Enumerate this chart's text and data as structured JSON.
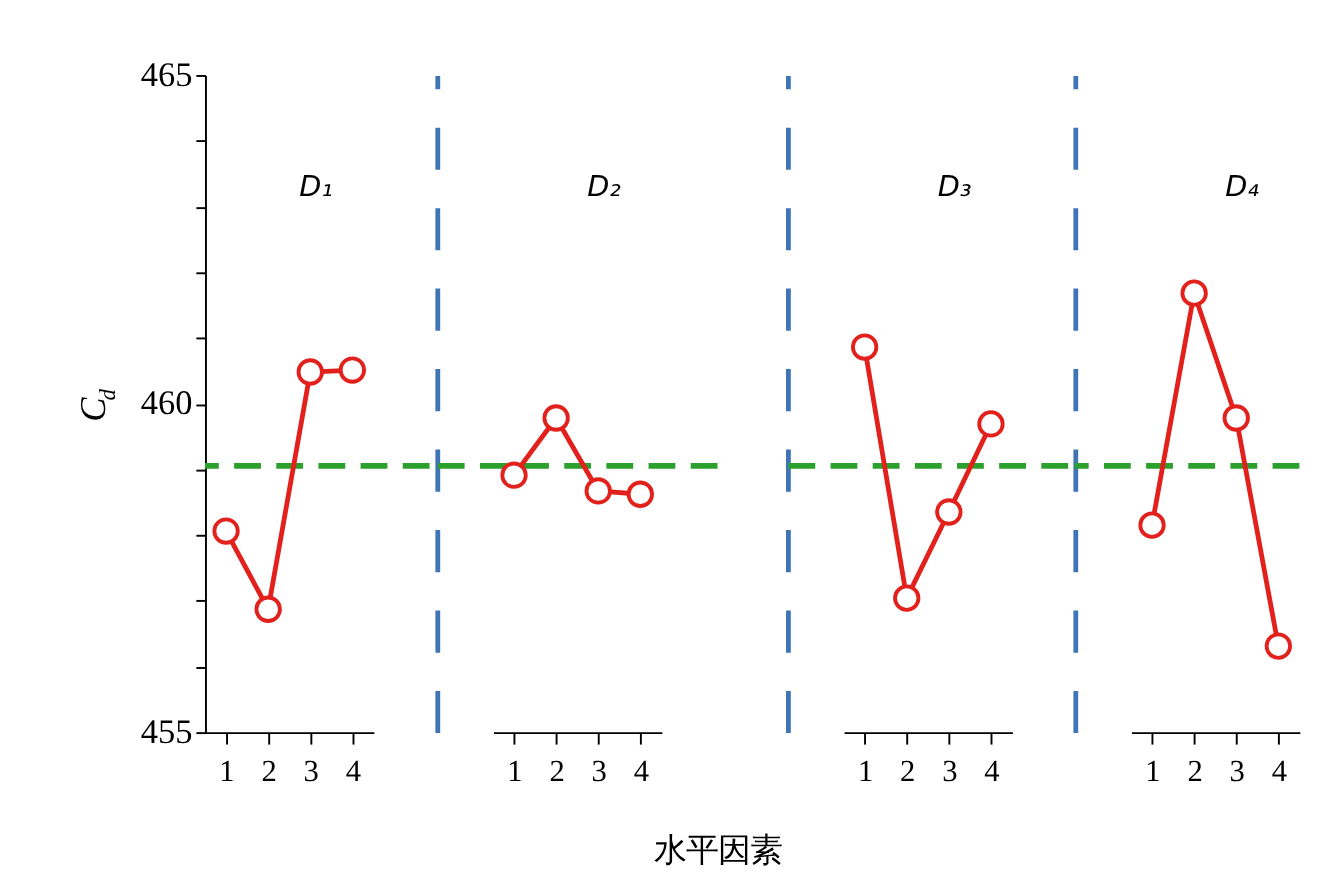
{
  "chart_data": [
    {
      "type": "line",
      "title": "D₁",
      "ylabel": "C$_{d}$",
      "categories": [
        "1",
        "2",
        "3",
        "4"
      ],
      "series": [
        {
          "color": "#e3211c",
          "values": [
            458.06,
            456.87,
            460.48,
            460.51
          ]
        }
      ],
      "ylim": [
        455,
        465
      ],
      "yticks": [
        455,
        {
          "value": 456,
          "label": null
        },
        {
          "value": 457,
          "label": null
        },
        {
          "value": 458,
          "label": null
        },
        {
          "value": 459,
          "label": null
        },
        460,
        {
          "value": 461,
          "label": null
        },
        {
          "value": 462,
          "label": null
        },
        {
          "value": 463,
          "label": null
        },
        {
          "value": 464,
          "label": null
        },
        465
      ],
      "ref_lines": [
        {
          "axis": "y",
          "value": 459.05,
          "color": "#2ca02c",
          "line_style": "dashed"
        }
      ],
      "marker": "circle",
      "line_style": "solid"
    },
    {
      "type": "line",
      "title": "D₂",
      "xlabel": "水平因素",
      "categories": [
        "1",
        "2",
        "3",
        "4"
      ],
      "series": [
        {
          "color": "#e3211c",
          "values": [
            458.91,
            459.78,
            458.67,
            458.62
          ]
        }
      ],
      "ylim": [
        455,
        465
      ],
      "tick_labels": "x",
      "ref_lines": [
        {
          "axis": "y",
          "value": 459.05,
          "color": "#2ca02c",
          "line_style": "dashed"
        }
      ],
      "marker": "circle",
      "line_style": "solid"
    },
    {
      "type": "line",
      "title": "D₃",
      "categories": [
        "1",
        "2",
        "3",
        "4"
      ],
      "series": [
        {
          "color": "#e3211c",
          "values": [
            460.86,
            457.04,
            458.35,
            459.69
          ]
        }
      ],
      "ylim": [
        455,
        465
      ],
      "tick_labels": "x",
      "ref_lines": [
        {
          "axis": "y",
          "value": 459.05,
          "color": "#2ca02c",
          "line_style": "dashed"
        }
      ],
      "marker": "circle",
      "line_style": "solid"
    },
    {
      "type": "line",
      "title": "D₄",
      "categories": [
        "1",
        "2",
        "3",
        "4"
      ],
      "series": [
        {
          "color": "#e3211c",
          "values": [
            458.15,
            461.68,
            459.78,
            456.31
          ]
        }
      ],
      "ylim": [
        455,
        465
      ],
      "tick_labels": "x",
      "ref_lines": [
        {
          "axis": "y",
          "value": 459.05,
          "color": "#2ca02c",
          "line_style": "dashed"
        }
      ],
      "marker": "circle",
      "line_style": "solid"
    }
  ]
}
